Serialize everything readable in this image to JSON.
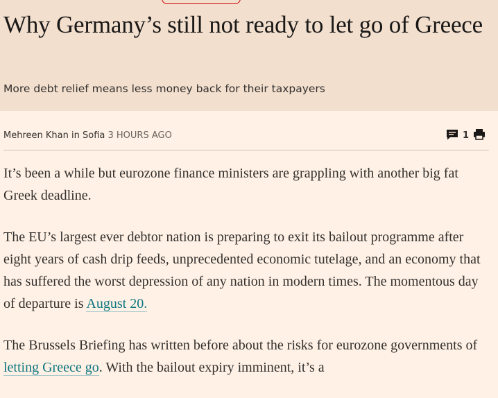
{
  "article": {
    "top_cut_text": "",
    "headline": "Why Germany’s still not ready to let go of Greece",
    "standfirst": "More debt relief means less money back for their taxpayers",
    "byline": {
      "author": "Mehreen Khan",
      "location": "in Sofia",
      "time": "3 HOURS AGO"
    },
    "tools": {
      "comments_icon": "comment-icon",
      "comments_count": "1",
      "print_icon": "print-icon"
    },
    "paragraphs": [
      {
        "text_before": "It’s been a while but eurozone finance ministers are grappling with another big fat Greek deadline.",
        "link": "",
        "text_after": ""
      },
      {
        "text_before": "The EU’s largest ever debtor nation is preparing to exit its bailout programme after eight years of cash drip feeds, unprecedented economic tutelage, and an economy that has suffered the worst depression of any nation in modern times. The momentous day of departure is ",
        "link": "August 20.",
        "text_after": ""
      },
      {
        "text_before": "The Brussels Briefing has written before about the risks for eurozone governments of ",
        "link": "letting Greece go",
        "text_after": ". With the bailout expiry imminent, it’s a"
      }
    ]
  },
  "colors": {
    "page_background": "#fff1e5",
    "header_background": "#f2dfce",
    "link": "#0d7680",
    "accent_pill": "#cc0000"
  }
}
